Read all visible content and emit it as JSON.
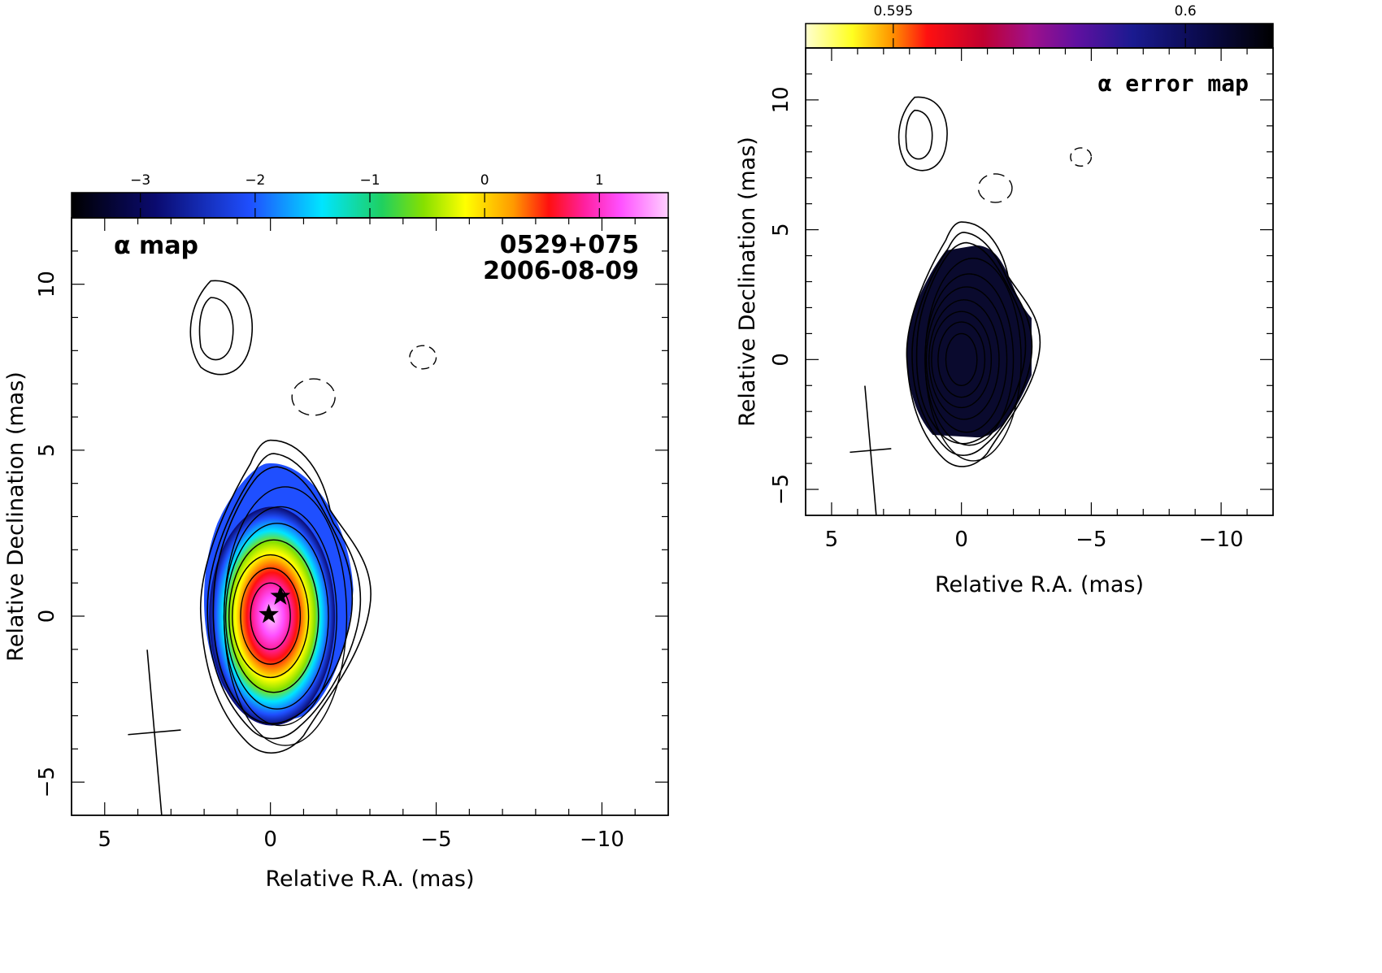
{
  "chart_data": [
    {
      "type": "heatmap",
      "panel": "left",
      "annotation": "α map",
      "source_label": "0529+075",
      "date_label": "2006-08-09",
      "xlabel": "Relative R.A. (mas)",
      "ylabel": "Relative Declination (mas)",
      "xlim": [
        6,
        -12
      ],
      "ylim": [
        -6,
        12
      ],
      "x_ticks": [
        5,
        0,
        -5,
        -10
      ],
      "y_ticks": [
        -5,
        0,
        5,
        10
      ],
      "x_tick_labels": [
        "5",
        "0",
        "−5",
        "−10"
      ],
      "y_tick_labels": [
        "−5",
        "0",
        "5",
        "10"
      ],
      "colorbar": {
        "range": [
          -3.6,
          1.6
        ],
        "ticks": [
          -3,
          -2,
          -1,
          0,
          1
        ],
        "tick_labels": [
          "−3",
          "−2",
          "−1",
          "0",
          "1"
        ],
        "colormap": "black-blue-cyan-green-yellow-orange-red-magenta-pink"
      },
      "markers": [
        {
          "name": "component-star",
          "x": 0.05,
          "y": 0.05
        },
        {
          "name": "component-star",
          "x": -0.3,
          "y": 0.6
        }
      ],
      "beam": {
        "x": 3.5,
        "y": -3.5,
        "major": 5.0,
        "minor": 1.6,
        "pa_deg": -5
      }
    },
    {
      "type": "heatmap",
      "panel": "right",
      "annotation": "α error map",
      "xlabel": "Relative R.A. (mas)",
      "ylabel": "Relative Declination (mas)",
      "xlim": [
        6,
        -12
      ],
      "ylim": [
        -6,
        12
      ],
      "x_ticks": [
        5,
        0,
        -5,
        -10
      ],
      "y_ticks": [
        -5,
        0,
        5,
        10
      ],
      "x_tick_labels": [
        "5",
        "0",
        "−5",
        "−10"
      ],
      "y_tick_labels": [
        "−5",
        "0",
        "5",
        "10"
      ],
      "colorbar": {
        "range": [
          0.5935,
          0.6015
        ],
        "ticks": [
          0.595,
          0.6
        ],
        "tick_labels": [
          "0.595",
          "0.6"
        ],
        "colormap": "white-yellow-orange-red-purple-blue-black"
      },
      "beam": {
        "x": 3.5,
        "y": -3.5,
        "major": 5.0,
        "minor": 1.6,
        "pa_deg": -5
      }
    }
  ],
  "colors": {
    "axes": "#000000",
    "background": "#ffffff",
    "error_fill": "#0a0a2e"
  }
}
